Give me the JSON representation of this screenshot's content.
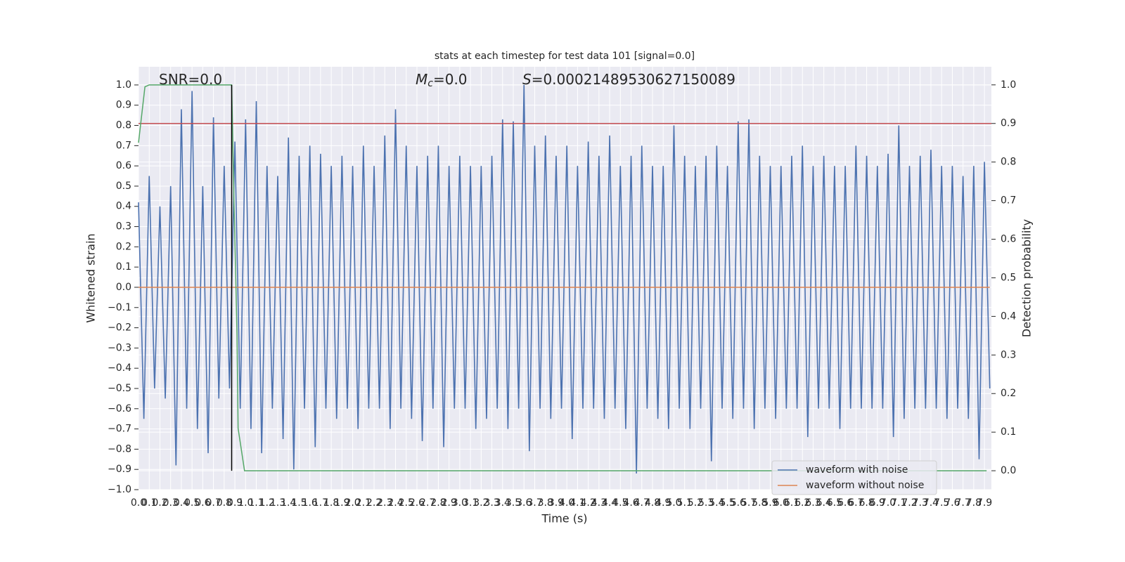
{
  "chart_data": {
    "type": "line",
    "title": "stats at each timestep for test data 101 [signal=0.0]",
    "xlabel": "Time (s)",
    "ylabel": "Whitened strain",
    "y2label": "Detection probability",
    "annotations": [
      {
        "parts": [
          "SNR=0.0"
        ]
      },
      {
        "parts": [
          "M",
          "c",
          "=0.0"
        ]
      },
      {
        "parts": [
          "S",
          "=0.00021489530627150089"
        ]
      }
    ],
    "xlim": [
      0,
      7.965
    ],
    "ylim": [
      -1.0,
      1.09
    ],
    "y2lim": [
      -0.049,
      1.047
    ],
    "xticks": [
      {
        "value": 0,
        "label": "0.0"
      },
      0.1,
      0.2,
      0.3,
      0.4,
      0.5,
      0.6,
      0.7,
      0.8,
      0.9,
      {
        "value": 1,
        "label": "1.0"
      },
      1.1,
      1.2,
      1.3,
      1.4,
      1.5,
      1.6,
      1.7,
      1.8,
      1.9,
      {
        "value": 2,
        "label": "2.0"
      },
      2.1,
      2.2,
      2.3,
      2.4,
      2.5,
      2.6,
      2.7,
      2.8,
      2.9,
      {
        "value": 3,
        "label": "3.0"
      },
      3.1,
      3.2,
      3.3,
      3.4,
      3.5,
      3.6,
      3.7,
      3.8,
      3.9,
      {
        "value": 4,
        "label": "4.0"
      },
      4.1,
      4.2,
      4.3,
      4.4,
      4.5,
      4.6,
      4.7,
      4.8,
      4.9,
      {
        "value": 5,
        "label": "5.0"
      },
      5.1,
      5.2,
      5.3,
      5.4,
      5.5,
      5.6,
      5.7,
      5.8,
      5.9,
      {
        "value": 6,
        "label": "6.0"
      },
      6.1,
      6.2,
      6.3,
      6.4,
      6.5,
      6.6,
      6.7,
      6.8,
      6.9,
      {
        "value": 7,
        "label": "7.0"
      },
      7.1,
      7.2,
      7.3,
      7.4,
      7.5,
      7.6,
      7.7,
      7.8,
      7.9
    ],
    "yticks": [
      {
        "value": -1,
        "label": "−1.0"
      },
      {
        "value": -0.9,
        "label": "−0.9"
      },
      {
        "value": -0.8,
        "label": "−0.8"
      },
      {
        "value": -0.7,
        "label": "−0.7"
      },
      {
        "value": -0.6,
        "label": "−0.6"
      },
      {
        "value": -0.5,
        "label": "−0.5"
      },
      {
        "value": -0.4,
        "label": "−0.4"
      },
      {
        "value": -0.3,
        "label": "−0.3"
      },
      {
        "value": -0.2,
        "label": "−0.2"
      },
      {
        "value": -0.1,
        "label": "−0.1"
      },
      {
        "value": 0,
        "label": "0.0"
      },
      0.1,
      0.2,
      0.3,
      0.4,
      0.5,
      0.6,
      0.7,
      0.8,
      0.9,
      {
        "value": 1,
        "label": "1.0"
      }
    ],
    "y2ticks": [
      {
        "value": 0,
        "label": "0.0"
      },
      0.1,
      0.2,
      0.3,
      0.4,
      0.5,
      0.6,
      0.7,
      0.8,
      0.9,
      {
        "value": 1,
        "label": "1.0"
      }
    ],
    "grid": true,
    "legend": "lower right",
    "series": [
      {
        "name": "waveform with noise",
        "color": "#4c72b0",
        "x": [
          0,
          0.05,
          0.1,
          0.15,
          0.2,
          0.25,
          0.3,
          0.35,
          0.4,
          0.45,
          0.5,
          0.55,
          0.6,
          0.65,
          0.7,
          0.75,
          0.8,
          0.85,
          0.9,
          0.95,
          1,
          1.05,
          1.1,
          1.15,
          1.2,
          1.25,
          1.3,
          1.35,
          1.4,
          1.45,
          1.5,
          1.55,
          1.6,
          1.65,
          1.7,
          1.75,
          1.8,
          1.85,
          1.9,
          1.95,
          2,
          2.05,
          2.1,
          2.15,
          2.2,
          2.25,
          2.3,
          2.35,
          2.4,
          2.45,
          2.5,
          2.55,
          2.6,
          2.65,
          2.7,
          2.75,
          2.8,
          2.85,
          2.9,
          2.95,
          3,
          3.05,
          3.1,
          3.15,
          3.2,
          3.25,
          3.3,
          3.35,
          3.4,
          3.45,
          3.5,
          3.55,
          3.6,
          3.65,
          3.7,
          3.75,
          3.8,
          3.85,
          3.9,
          3.95,
          4,
          4.05,
          4.1,
          4.15,
          4.2,
          4.25,
          4.3,
          4.35,
          4.4,
          4.45,
          4.5,
          4.55,
          4.6,
          4.65,
          4.7,
          4.75,
          4.8,
          4.85,
          4.9,
          4.95,
          5,
          5.05,
          5.1,
          5.15,
          5.2,
          5.25,
          5.3,
          5.35,
          5.4,
          5.45,
          5.5,
          5.55,
          5.6,
          5.65,
          5.7,
          5.75,
          5.8,
          5.85,
          5.9,
          5.95,
          6,
          6.05,
          6.1,
          6.15,
          6.2,
          6.25,
          6.3,
          6.35,
          6.4,
          6.45,
          6.5,
          6.55,
          6.6,
          6.65,
          6.7,
          6.75,
          6.8,
          6.85,
          6.9,
          6.95,
          7,
          7.05,
          7.1,
          7.15,
          7.2,
          7.25,
          7.3,
          7.35,
          7.4,
          7.45,
          7.5,
          7.55,
          7.6,
          7.65,
          7.7,
          7.75,
          7.8,
          7.85,
          7.9,
          7.95
        ],
        "values": [
          0.42,
          -0.65,
          0.55,
          -0.5,
          0.4,
          -0.55,
          0.5,
          -0.88,
          0.88,
          -0.6,
          0.97,
          -0.7,
          0.5,
          -0.82,
          0.84,
          -0.55,
          0.6,
          -0.5,
          0.72,
          -0.6,
          0.83,
          -0.7,
          0.92,
          -0.82,
          0.6,
          -0.6,
          0.55,
          -0.75,
          0.74,
          -0.9,
          0.65,
          -0.6,
          0.7,
          -0.79,
          0.66,
          -0.6,
          0.6,
          -0.65,
          0.65,
          -0.6,
          0.6,
          -0.7,
          0.7,
          -0.6,
          0.6,
          -0.6,
          0.75,
          -0.7,
          0.88,
          -0.6,
          0.7,
          -0.65,
          0.6,
          -0.76,
          0.65,
          -0.6,
          0.7,
          -0.79,
          0.6,
          -0.6,
          0.65,
          -0.6,
          0.6,
          -0.7,
          0.6,
          -0.65,
          0.65,
          -0.6,
          0.83,
          -0.7,
          0.82,
          -0.6,
          1.0,
          -0.81,
          0.7,
          -0.6,
          0.75,
          -0.65,
          0.65,
          -0.6,
          0.7,
          -0.75,
          0.6,
          -0.6,
          0.72,
          -0.6,
          0.65,
          -0.65,
          0.75,
          -0.6,
          0.6,
          -0.7,
          0.65,
          -0.92,
          0.7,
          -0.6,
          0.6,
          -0.65,
          0.6,
          -0.7,
          0.8,
          -0.6,
          0.65,
          -0.7,
          0.6,
          -0.6,
          0.65,
          -0.86,
          0.7,
          -0.6,
          0.6,
          -0.65,
          0.82,
          -0.6,
          0.83,
          -0.7,
          0.65,
          -0.6,
          0.6,
          -0.65,
          0.6,
          -0.6,
          0.65,
          -0.6,
          0.7,
          -0.74,
          0.6,
          -0.6,
          0.65,
          -0.6,
          0.6,
          -0.7,
          0.6,
          -0.6,
          0.7,
          -0.6,
          0.65,
          -0.6,
          0.6,
          -0.6,
          0.66,
          -0.74,
          0.8,
          -0.65,
          0.6,
          -0.6,
          0.65,
          -0.6,
          0.68,
          -0.6,
          0.6,
          -0.65,
          0.6,
          -0.6,
          0.55,
          -0.65,
          0.6,
          -0.85,
          0.62,
          -0.5
        ]
      },
      {
        "name": "waveform without noise",
        "color": "#dd8452",
        "x": [
          0,
          7.95
        ],
        "values": [
          0,
          0
        ]
      },
      {
        "color": "#c44e52",
        "axis": "y2",
        "x": [
          0,
          7.965
        ],
        "values": [
          0.9,
          0.9
        ]
      },
      {
        "color": "#55a868",
        "axis": "y2",
        "x": [
          0,
          0.06,
          0.1,
          0.87,
          0.89,
          0.92,
          0.93,
          0.99,
          7.92
        ],
        "values": [
          0.85,
          0.995,
          1,
          1,
          0.72,
          0.35,
          0.11,
          0,
          0
        ]
      },
      {
        "color": "#000000",
        "axis": "y2",
        "x": [
          0.87,
          0.87
        ],
        "values": [
          0,
          1
        ]
      }
    ]
  }
}
